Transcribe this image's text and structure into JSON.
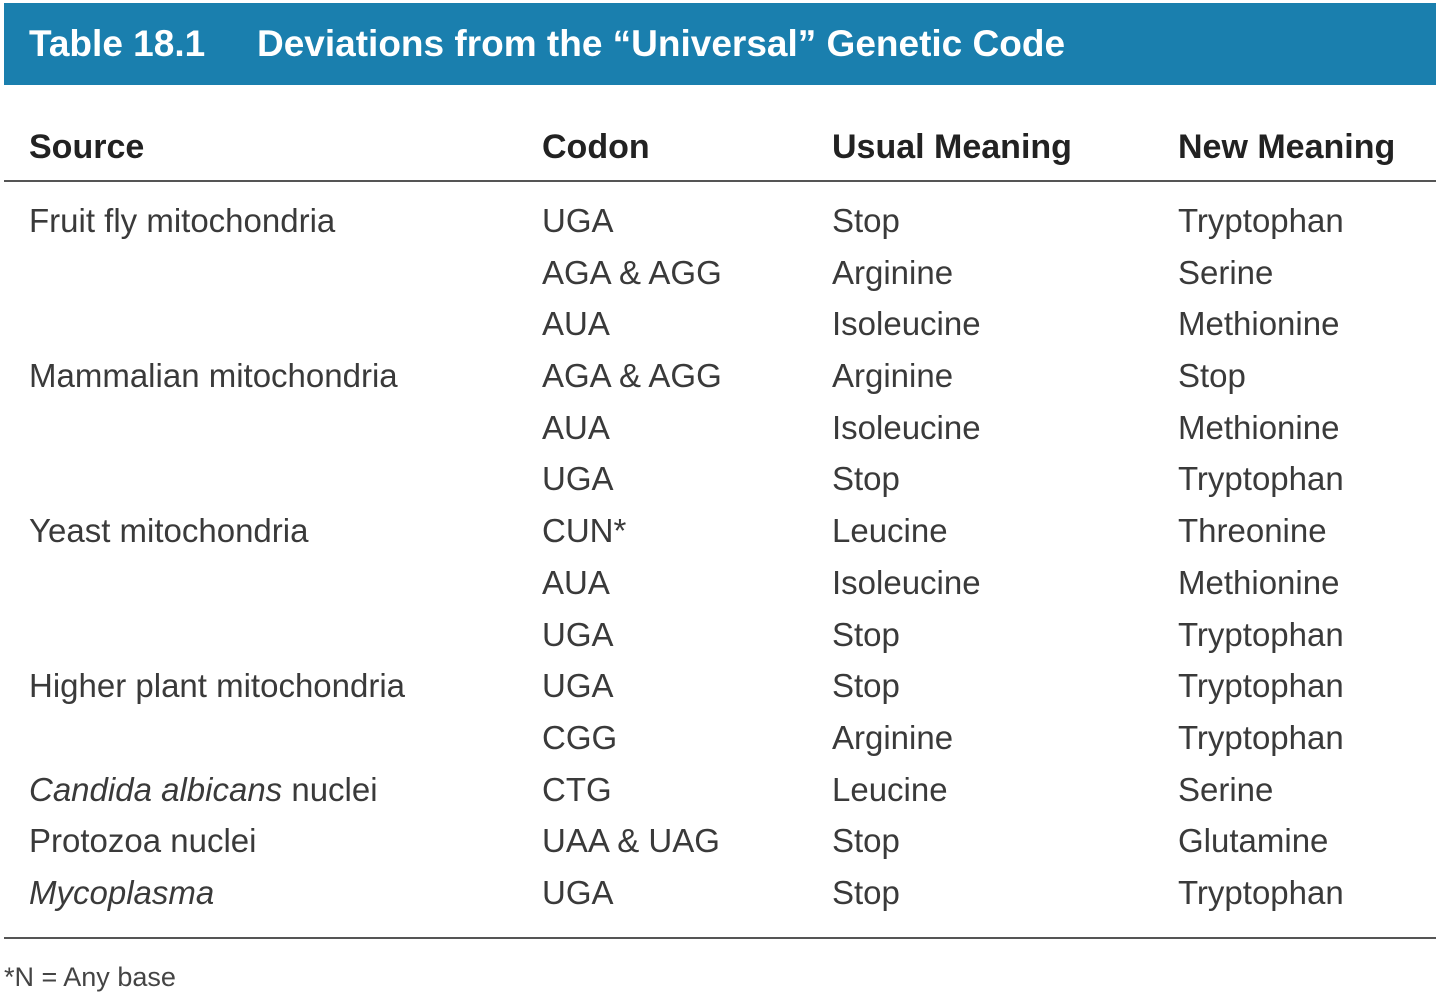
{
  "table": {
    "number": "Table 18.1",
    "title": "Deviations from the “Universal” Genetic Code",
    "header": {
      "source": "Source",
      "codon": "Codon",
      "usual": "Usual Meaning",
      "new": "New Meaning"
    },
    "rows": [
      {
        "source": "Fruit fly mitochondria",
        "source_italic": "",
        "codon": "UGA",
        "usual": "Stop",
        "new": "Tryptophan"
      },
      {
        "source": "",
        "source_italic": "",
        "codon": "AGA & AGG",
        "usual": "Arginine",
        "new": "Serine"
      },
      {
        "source": "",
        "source_italic": "",
        "codon": "AUA",
        "usual": "Isoleucine",
        "new": "Methionine"
      },
      {
        "source": "Mammalian mitochondria",
        "source_italic": "",
        "codon": "AGA & AGG",
        "usual": "Arginine",
        "new": "Stop"
      },
      {
        "source": "",
        "source_italic": "",
        "codon": "AUA",
        "usual": "Isoleucine",
        "new": "Methionine"
      },
      {
        "source": "",
        "source_italic": "",
        "codon": "UGA",
        "usual": "Stop",
        "new": "Tryptophan"
      },
      {
        "source": "Yeast mitochondria",
        "source_italic": "",
        "codon": "CUN*",
        "usual": "Leucine",
        "new": "Threonine"
      },
      {
        "source": "",
        "source_italic": "",
        "codon": "AUA",
        "usual": "Isoleucine",
        "new": "Methionine"
      },
      {
        "source": "",
        "source_italic": "",
        "codon": "UGA",
        "usual": "Stop",
        "new": "Tryptophan"
      },
      {
        "source": "Higher plant mitochondria",
        "source_italic": "",
        "codon": "UGA",
        "usual": "Stop",
        "new": "Tryptophan"
      },
      {
        "source": "",
        "source_italic": "",
        "codon": "CGG",
        "usual": "Arginine",
        "new": "Tryptophan"
      },
      {
        "source": " nuclei",
        "source_italic": "Candida albicans",
        "codon": "CTG",
        "usual": "Leucine",
        "new": "Serine"
      },
      {
        "source": "Protozoa nuclei",
        "source_italic": "",
        "codon": "UAA & UAG",
        "usual": "Stop",
        "new": "Glutamine"
      },
      {
        "source": "",
        "source_italic": "Mycoplasma",
        "codon": "UGA",
        "usual": "Stop",
        "new": "Tryptophan"
      }
    ],
    "footnote": "*N = Any base"
  }
}
